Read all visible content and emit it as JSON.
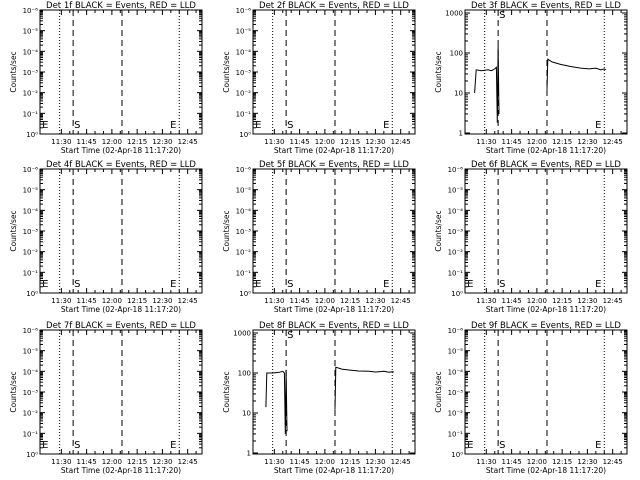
{
  "chart_data": [
    {
      "title": "Det 1f BLACK = Events, RED = LLD",
      "type": "line",
      "yscale": "log",
      "ytick_labels": [
        "10⁰",
        "10⁻¹",
        "10⁻²",
        "10⁻³",
        "10⁻⁴",
        "10⁻⁵",
        "10⁻⁶"
      ],
      "xtick_labels": [
        "11:30",
        "11:45",
        "12:00",
        "12:15",
        "12:30",
        "12:45"
      ],
      "xlabel": "Start Time (02-Apr-18 11:17:20)",
      "ylabel": "Counts/sec",
      "markers": [
        {
          "label": "E",
          "time": "11:18"
        },
        {
          "label": "S",
          "time": "11:37"
        },
        {
          "label": "E",
          "time": "12:34"
        }
      ],
      "vlines_dotted": [
        "11:29",
        "12:40"
      ],
      "vlines_dashed": [
        "11:37",
        "12:06"
      ],
      "series": []
    },
    {
      "title": "Det 2f BLACK = Events, RED = LLD",
      "type": "line",
      "yscale": "log",
      "ytick_labels": [
        "10⁰",
        "10⁻¹",
        "10⁻²",
        "10⁻³",
        "10⁻⁴",
        "10⁻⁵",
        "10⁻⁶"
      ],
      "xtick_labels": [
        "11:30",
        "11:45",
        "12:00",
        "12:15",
        "12:30",
        "12:45"
      ],
      "xlabel": "Start Time (02-Apr-18 11:17:20)",
      "ylabel": "Counts/sec",
      "markers": [
        {
          "label": "E",
          "time": "11:18"
        },
        {
          "label": "S",
          "time": "11:37"
        },
        {
          "label": "E",
          "time": "12:34"
        }
      ],
      "vlines_dotted": [
        "11:29",
        "12:40"
      ],
      "vlines_dashed": [
        "11:37",
        "12:06"
      ],
      "series": []
    },
    {
      "title": "Det 3f BLACK = Events, RED = LLD",
      "type": "line",
      "yscale": "log",
      "ytick_labels": [
        "1000",
        "100",
        "10",
        "1"
      ],
      "xtick_labels": [
        "11:30",
        "11:45",
        "12:00",
        "12:15",
        "12:30",
        "12:45"
      ],
      "xlabel": "Start Time (02-Apr-18 11:17:20)",
      "ylabel": "Counts/sec",
      "markers": [
        {
          "label": "S",
          "time": "11:37"
        },
        {
          "label": "E",
          "time": "12:34"
        }
      ],
      "vlines_dotted": [
        "11:29",
        "12:40"
      ],
      "vlines_dashed": [
        "11:37",
        "12:06"
      ],
      "series": [
        {
          "color": "#000000",
          "segments": [
            [
              [
                "11:23",
                10
              ],
              [
                "11:24",
                38
              ],
              [
                "11:27",
                36
              ],
              [
                "11:31",
                38
              ],
              [
                "11:33",
                36
              ],
              [
                "11:35",
                40
              ],
              [
                "11:36",
                44
              ],
              [
                "11:36.5",
                1.8
              ],
              [
                "11:37",
                150
              ],
              [
                "11:37.5",
                3
              ]
            ],
            [
              [
                "12:06",
                12
              ],
              [
                "12:06.5",
                70
              ],
              [
                "12:09",
                60
              ],
              [
                "12:14",
                52
              ],
              [
                "12:20",
                46
              ],
              [
                "12:26",
                42
              ],
              [
                "12:31",
                40
              ],
              [
                "12:35",
                42
              ],
              [
                "12:38",
                38
              ],
              [
                "12:40",
                40
              ],
              [
                "12:41",
                38
              ]
            ]
          ]
        }
      ]
    },
    {
      "title": "Det 4f BLACK = Events, RED = LLD",
      "type": "line",
      "yscale": "log",
      "ytick_labels": [
        "10⁰",
        "10⁻¹",
        "10⁻²",
        "10⁻³",
        "10⁻⁴",
        "10⁻⁵",
        "10⁻⁶"
      ],
      "xtick_labels": [
        "11:30",
        "11:45",
        "12:00",
        "12:15",
        "12:30",
        "12:45"
      ],
      "xlabel": "Start Time (02-Apr-18 11:17:20)",
      "ylabel": "Counts/sec",
      "markers": [
        {
          "label": "E",
          "time": "11:18"
        },
        {
          "label": "S",
          "time": "11:37"
        },
        {
          "label": "E",
          "time": "12:34"
        }
      ],
      "vlines_dotted": [
        "11:29",
        "12:40"
      ],
      "vlines_dashed": [
        "11:37",
        "12:06"
      ],
      "series": []
    },
    {
      "title": "Det 5f BLACK = Events, RED = LLD",
      "type": "line",
      "yscale": "log",
      "ytick_labels": [
        "10⁰",
        "10⁻¹",
        "10⁻²",
        "10⁻³",
        "10⁻⁴",
        "10⁻⁵",
        "10⁻⁶"
      ],
      "xtick_labels": [
        "11:30",
        "11:45",
        "12:00",
        "12:15",
        "12:30",
        "12:45"
      ],
      "xlabel": "Start Time (02-Apr-18 11:17:20)",
      "ylabel": "Counts/sec",
      "markers": [
        {
          "label": "E",
          "time": "11:18"
        },
        {
          "label": "S",
          "time": "11:37"
        },
        {
          "label": "E",
          "time": "12:34"
        }
      ],
      "vlines_dotted": [
        "11:29",
        "12:40"
      ],
      "vlines_dashed": [
        "11:37",
        "12:06"
      ],
      "series": []
    },
    {
      "title": "Det 6f BLACK = Events, RED = LLD",
      "type": "line",
      "yscale": "log",
      "ytick_labels": [
        "10⁰",
        "10⁻¹",
        "10⁻²",
        "10⁻³",
        "10⁻⁴",
        "10⁻⁵",
        "10⁻⁶"
      ],
      "xtick_labels": [
        "11:30",
        "11:45",
        "12:00",
        "12:15",
        "12:30",
        "12:45"
      ],
      "xlabel": "Start Time (02-Apr-18 11:17:20)",
      "ylabel": "Counts/sec",
      "markers": [
        {
          "label": "E",
          "time": "11:18"
        },
        {
          "label": "S",
          "time": "11:37"
        },
        {
          "label": "E",
          "time": "12:34"
        }
      ],
      "vlines_dotted": [
        "11:29",
        "12:40"
      ],
      "vlines_dashed": [
        "11:37",
        "12:06"
      ],
      "series": []
    },
    {
      "title": "Det 7f BLACK = Events, RED = LLD",
      "type": "line",
      "yscale": "log",
      "ytick_labels": [
        "10⁰",
        "10⁻¹",
        "10⁻²",
        "10⁻³",
        "10⁻⁴",
        "10⁻⁵",
        "10⁻⁶"
      ],
      "xtick_labels": [
        "11:30",
        "11:45",
        "12:00",
        "12:15",
        "12:30",
        "12:45"
      ],
      "xlabel": "Start Time (02-Apr-18 11:17:20)",
      "ylabel": "Counts/sec",
      "markers": [
        {
          "label": "E",
          "time": "11:18"
        },
        {
          "label": "S",
          "time": "11:37"
        },
        {
          "label": "E",
          "time": "12:34"
        }
      ],
      "vlines_dotted": [
        "11:29",
        "12:40"
      ],
      "vlines_dashed": [
        "11:37",
        "12:06"
      ],
      "series": []
    },
    {
      "title": "Det 8f BLACK = Events, RED = LLD",
      "type": "line",
      "yscale": "log",
      "ytick_labels": [
        "1000",
        "100",
        "10",
        "1"
      ],
      "xtick_labels": [
        "11:30",
        "11:45",
        "12:00",
        "12:15",
        "12:30",
        "12:45"
      ],
      "xlabel": "Start Time (02-Apr-18 11:17:20)",
      "ylabel": "Counts/sec",
      "markers": [
        {
          "label": "S",
          "time": "11:37"
        }
      ],
      "vlines_dotted": [
        "11:29",
        "12:40"
      ],
      "vlines_dashed": [
        "11:37",
        "12:06"
      ],
      "series": [
        {
          "color": "#000000",
          "segments": [
            [
              [
                "11:25",
                14
              ],
              [
                "11:25.5",
                100
              ],
              [
                "11:29",
                100
              ],
              [
                "11:33",
                104
              ],
              [
                "11:35",
                110
              ],
              [
                "11:36",
                100
              ],
              [
                "11:36.5",
                3
              ],
              [
                "11:37",
                120
              ],
              [
                "11:37.5",
                3.5
              ]
            ],
            [
              [
                "12:06",
                12
              ],
              [
                "12:06.5",
                140
              ],
              [
                "12:10",
                125
              ],
              [
                "12:15",
                118
              ],
              [
                "12:20",
                112
              ],
              [
                "12:26",
                110
              ],
              [
                "12:30",
                106
              ],
              [
                "12:35",
                110
              ],
              [
                "12:38",
                104
              ],
              [
                "12:40",
                108
              ],
              [
                "12:41",
                106
              ]
            ]
          ]
        }
      ]
    },
    {
      "title": "Det 9f BLACK = Events, RED = LLD",
      "type": "line",
      "yscale": "log",
      "ytick_labels": [
        "10⁰",
        "10⁻¹",
        "10⁻²",
        "10⁻³",
        "10⁻⁴",
        "10⁻⁵",
        "10⁻⁶"
      ],
      "xtick_labels": [
        "11:30",
        "11:45",
        "12:00",
        "12:15",
        "12:30",
        "12:45"
      ],
      "xlabel": "Start Time (02-Apr-18 11:17:20)",
      "ylabel": "Counts/sec",
      "markers": [
        {
          "label": "E",
          "time": "11:18"
        },
        {
          "label": "S",
          "time": "11:37"
        },
        {
          "label": "E",
          "time": "12:34"
        }
      ],
      "vlines_dotted": [
        "11:29",
        "12:40"
      ],
      "vlines_dashed": [
        "11:37",
        "12:06"
      ],
      "series": []
    }
  ]
}
